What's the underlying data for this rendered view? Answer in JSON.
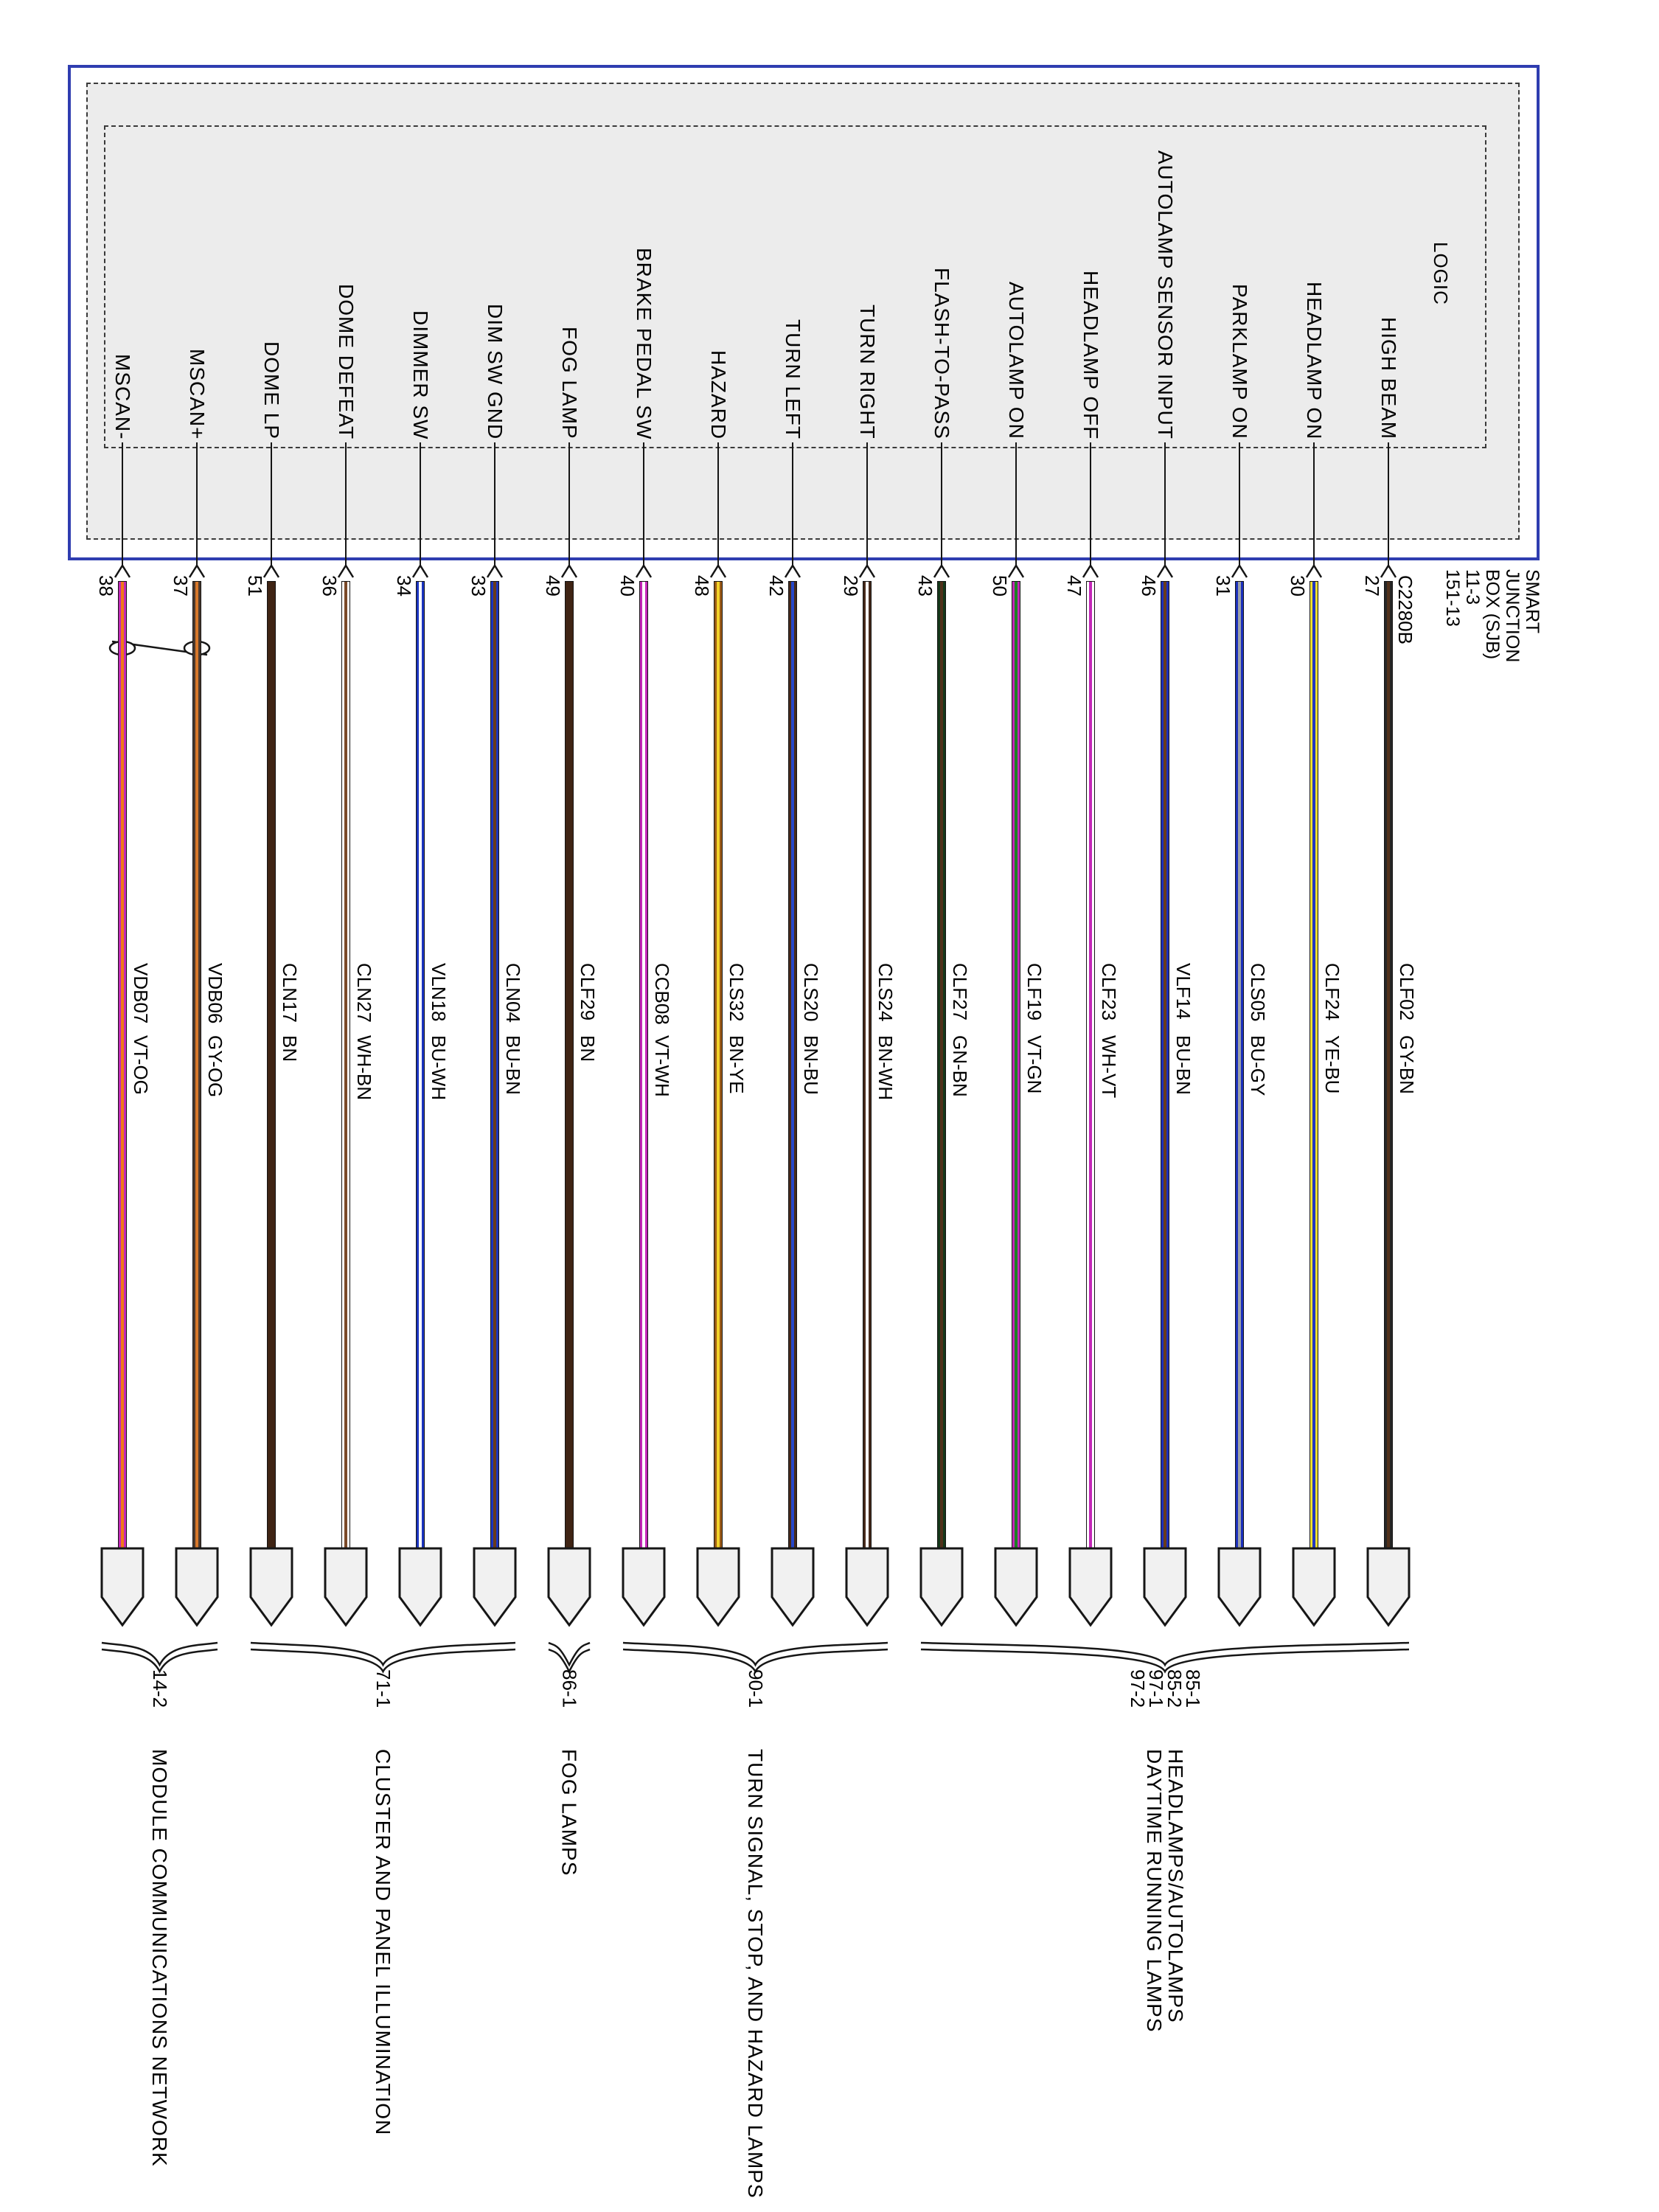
{
  "diagram": {
    "logic_label": "LOGIC",
    "connector_id": "C2280B",
    "sjb_title_lines": [
      "SMART",
      "JUNCTION",
      "BOX (SJB)",
      "11-3",
      "151-13"
    ],
    "colors": {
      "outer_box_border": "#2f3db0",
      "shaded_area": "#ececec"
    },
    "circuits": [
      {
        "pin": "38",
        "signal": "MSCAN-",
        "code": "VDB07",
        "color": "VT-OG",
        "base_hex": "#c428b8",
        "stripe_hex": "#f07818",
        "twisted_pair": true
      },
      {
        "pin": "37",
        "signal": "MSCAN+",
        "code": "VDB06",
        "color": "GY-OG",
        "base_hex": "#4a3a30",
        "stripe_hex": "#d8782a",
        "twisted_pair": true
      },
      {
        "pin": "51",
        "signal": "DOME LP",
        "code": "CLN17",
        "color": "BN",
        "base_hex": "#3f2414",
        "stripe_hex": null
      },
      {
        "pin": "36",
        "signal": "DOME DEFEAT",
        "code": "CLN27",
        "color": "WH-BN",
        "base_hex": "#ffffff",
        "stripe_hex": "#7a4928"
      },
      {
        "pin": "34",
        "signal": "DIMMER SW",
        "code": "VLN18",
        "color": "BU-WH",
        "base_hex": "#1c35c0",
        "stripe_hex": "#ffffff"
      },
      {
        "pin": "33",
        "signal": "DIM SW GND",
        "code": "CLN04",
        "color": "BU-BN",
        "base_hex": "#1c35c0",
        "stripe_hex": "#6a3c1a"
      },
      {
        "pin": "49",
        "signal": "FOG LAMP",
        "code": "CLF29",
        "color": "BN",
        "base_hex": "#3f2414",
        "stripe_hex": null
      },
      {
        "pin": "40",
        "signal": "BRAKE PEDAL SW",
        "code": "CCB08",
        "color": "VT-WH",
        "base_hex": "#c428b8",
        "stripe_hex": "#ffffff"
      },
      {
        "pin": "48",
        "signal": "HAZARD",
        "code": "CLS32",
        "color": "BN-YE",
        "base_hex": "#9a5a16",
        "stripe_hex": "#f2d22a"
      },
      {
        "pin": "42",
        "signal": "TURN LEFT",
        "code": "CLS20",
        "color": "BN-BU",
        "base_hex": "#46291a",
        "stripe_hex": "#2546c8"
      },
      {
        "pin": "29",
        "signal": "TURN RIGHT",
        "code": "CLS24",
        "color": "BN-WH",
        "base_hex": "#46291a",
        "stripe_hex": "#ffffff"
      },
      {
        "pin": "43",
        "signal": "FLASH-TO-PASS",
        "code": "CLF27",
        "color": "GN-BN",
        "base_hex": "#15381a",
        "stripe_hex": "#50301a"
      },
      {
        "pin": "50",
        "signal": "AUTOLAMP ON",
        "code": "CLF19",
        "color": "VT-GN",
        "base_hex": "#c428b8",
        "stripe_hex": "#1d8024"
      },
      {
        "pin": "47",
        "signal": "HEADLAMP OFF",
        "code": "CLF23",
        "color": "WH-VT",
        "base_hex": "#ffffff",
        "stripe_hex": "#c428b8"
      },
      {
        "pin": "46",
        "signal": "AUTOLAMP SENSOR INPUT",
        "code": "VLF14",
        "color": "BU-BN",
        "base_hex": "#1c30bc",
        "stripe_hex": "#6a3c1a"
      },
      {
        "pin": "31",
        "signal": "PARKLAMP ON",
        "code": "CLS05",
        "color": "BU-GY",
        "base_hex": "#1c30bc",
        "stripe_hex": "#9aa0a8"
      },
      {
        "pin": "30",
        "signal": "HEADLAMP ON",
        "code": "CLF24",
        "color": "YE-BU",
        "base_hex": "#efdf2e",
        "stripe_hex": "#2238c0"
      },
      {
        "pin": "27",
        "signal": "HIGH BEAM",
        "code": "CLF02",
        "color": "GY-BN",
        "base_hex": "#262626",
        "stripe_hex": "#50301a"
      }
    ],
    "groups": [
      {
        "refs": [
          "14-2"
        ],
        "label_lines": [
          "MODULE COMMUNICATIONS NETWORK"
        ],
        "wires": [
          1,
          2
        ]
      },
      {
        "refs": [
          "71-1"
        ],
        "label_lines": [
          "CLUSTER AND PANEL ILLUMINATION"
        ],
        "wires": [
          3,
          6
        ]
      },
      {
        "refs": [
          "86-1"
        ],
        "label_lines": [
          "FOG LAMPS"
        ],
        "wires": [
          7,
          7
        ]
      },
      {
        "refs": [
          "90-1"
        ],
        "label_lines": [
          "TURN SIGNAL, STOP, AND HAZARD LAMPS"
        ],
        "wires": [
          8,
          11
        ]
      },
      {
        "refs": [
          "85-1",
          "85-2",
          "97-1",
          "97-2"
        ],
        "label_lines": [
          "HEADLAMPS/AUTOLAMPS",
          "DAYTIME RUNNING LAMPS"
        ],
        "wires": [
          12,
          18
        ]
      }
    ]
  }
}
